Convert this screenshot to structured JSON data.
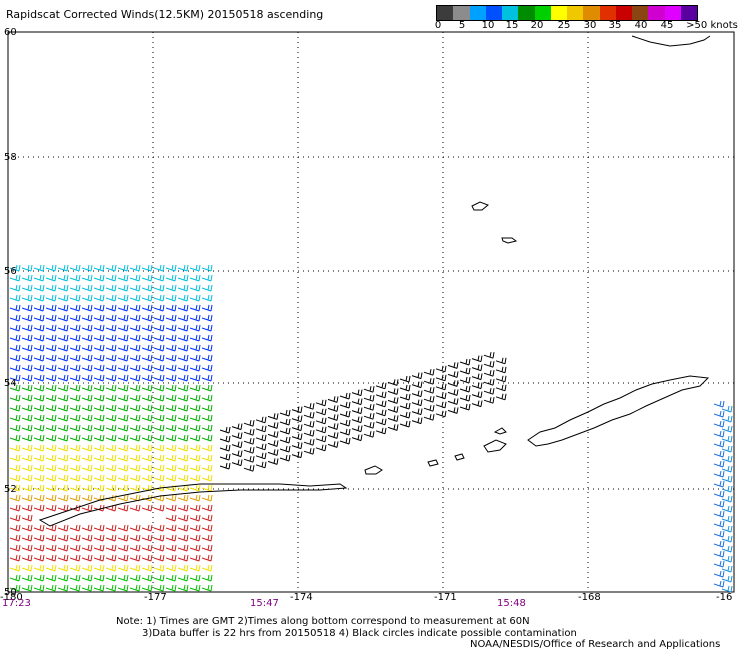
{
  "title": "Rapidscat Corrected Winds(12.5KM) 20150518 ascending",
  "colorbar": {
    "colors": [
      "#3c3c3c",
      "#8c8c8c",
      "#00a0ff",
      "#0050ff",
      "#00c0e0",
      "#008c00",
      "#00d000",
      "#ffff00",
      "#f0c800",
      "#e08c00",
      "#e03000",
      "#c80000",
      "#8b4513",
      "#d000d0",
      "#e000ff",
      "#5a00a0"
    ],
    "labels": [
      "0",
      "5",
      "10",
      "15",
      "20",
      "25",
      "30",
      "35",
      "40",
      "45",
      ">50 knots"
    ]
  },
  "lat_labels": [
    "60",
    "58",
    "56",
    "54",
    "52",
    "50"
  ],
  "lon_labels": [
    "-180",
    "-177",
    "-174",
    "-171",
    "-168",
    "-16"
  ],
  "times": [
    "17:23",
    "15:47",
    "15:48"
  ],
  "notes": [
    "Note: 1) Times are GMT 2)Times along bottom correspond to measurement at 60N",
    "3)Data buffer is 22 hrs from 20150518 4) Black circles indicate possible contamination",
    "NOAA/NESDIS/Office of Research and Applications"
  ]
}
